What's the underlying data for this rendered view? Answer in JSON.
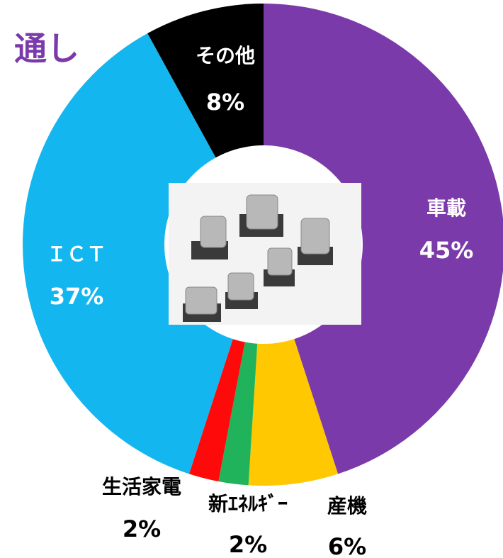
{
  "chart_data": {
    "type": "pie",
    "title": "通し",
    "categories": [
      "車載",
      "産機",
      "新ｴﾈﾙｷﾞｰ",
      "生活家電",
      "ＩＣＴ",
      "その他"
    ],
    "values": [
      45,
      6,
      2,
      2,
      37,
      8
    ],
    "value_labels": [
      "45%",
      "6%",
      "2%",
      "2%",
      "37%",
      "8%"
    ],
    "colors": [
      "#7b3aaa",
      "#ffc800",
      "#21b35b",
      "#ff0a0a",
      "#14b6f0",
      "#000000"
    ]
  }
}
